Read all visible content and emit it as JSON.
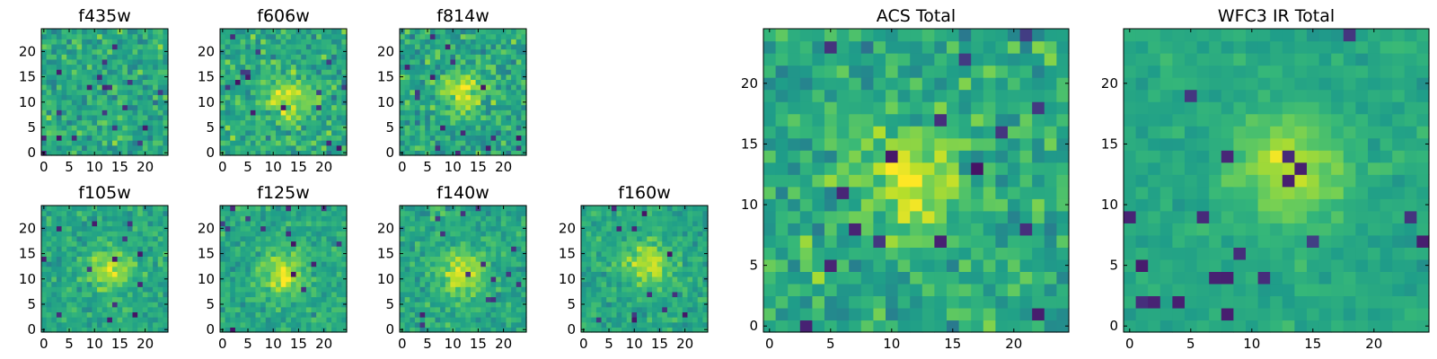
{
  "chart_data": [
    {
      "type": "heatmap",
      "title": "f435w",
      "x_ticks": [
        "0",
        "5",
        "10",
        "15",
        "20"
      ],
      "y_ticks": [
        "0",
        "5",
        "10",
        "15",
        "20"
      ],
      "xlim": [
        -0.5,
        24.5
      ],
      "ylim": [
        -0.5,
        24.5
      ],
      "grid_size": 25,
      "source_center": null,
      "noise_level": "high",
      "colormap": "viridis"
    },
    {
      "type": "heatmap",
      "title": "f606w",
      "x_ticks": [
        "0",
        "5",
        "10",
        "15",
        "20"
      ],
      "y_ticks": [
        "0",
        "5",
        "10",
        "15",
        "20"
      ],
      "xlim": [
        -0.5,
        24.5
      ],
      "ylim": [
        -0.5,
        24.5
      ],
      "grid_size": 25,
      "source_center": [
        13,
        11
      ],
      "noise_level": "high",
      "colormap": "viridis"
    },
    {
      "type": "heatmap",
      "title": "f814w",
      "x_ticks": [
        "0",
        "5",
        "10",
        "15",
        "20"
      ],
      "y_ticks": [
        "0",
        "5",
        "10",
        "15",
        "20"
      ],
      "xlim": [
        -0.5,
        24.5
      ],
      "ylim": [
        -0.5,
        24.5
      ],
      "grid_size": 25,
      "source_center": [
        12,
        12
      ],
      "noise_level": "high",
      "colormap": "viridis"
    },
    {
      "type": "heatmap",
      "title": "f105w",
      "x_ticks": [
        "0",
        "5",
        "10",
        "15",
        "20"
      ],
      "y_ticks": [
        "0",
        "5",
        "10",
        "15",
        "20"
      ],
      "xlim": [
        -0.5,
        24.5
      ],
      "ylim": [
        -0.5,
        24.5
      ],
      "grid_size": 25,
      "source_center": [
        13,
        12
      ],
      "noise_level": "medium",
      "colormap": "viridis"
    },
    {
      "type": "heatmap",
      "title": "f125w",
      "x_ticks": [
        "0",
        "5",
        "10",
        "15",
        "20"
      ],
      "y_ticks": [
        "0",
        "5",
        "10",
        "15",
        "20"
      ],
      "xlim": [
        -0.5,
        24.5
      ],
      "ylim": [
        -0.5,
        24.5
      ],
      "grid_size": 25,
      "source_center": [
        12,
        11
      ],
      "noise_level": "medium",
      "colormap": "viridis"
    },
    {
      "type": "heatmap",
      "title": "f140w",
      "x_ticks": [
        "0",
        "5",
        "10",
        "15",
        "20"
      ],
      "y_ticks": [
        "0",
        "5",
        "10",
        "15",
        "20"
      ],
      "xlim": [
        -0.5,
        24.5
      ],
      "ylim": [
        -0.5,
        24.5
      ],
      "grid_size": 25,
      "source_center": [
        12,
        11
      ],
      "noise_level": "medium",
      "colormap": "viridis"
    },
    {
      "type": "heatmap",
      "title": "f160w",
      "x_ticks": [
        "0",
        "5",
        "10",
        "15",
        "20"
      ],
      "y_ticks": [
        "0",
        "5",
        "10",
        "15",
        "20"
      ],
      "xlim": [
        -0.5,
        24.5
      ],
      "ylim": [
        -0.5,
        24.5
      ],
      "grid_size": 25,
      "source_center": [
        13,
        13
      ],
      "noise_level": "medium",
      "colormap": "viridis"
    },
    {
      "type": "heatmap",
      "title": "ACS Total",
      "x_ticks": [
        "0",
        "5",
        "10",
        "15",
        "20"
      ],
      "y_ticks": [
        "0",
        "5",
        "10",
        "15",
        "20"
      ],
      "xlim": [
        -0.5,
        24.5
      ],
      "ylim": [
        -0.5,
        24.5
      ],
      "grid_size": 25,
      "source_center": [
        12,
        12
      ],
      "noise_level": "high",
      "colormap": "viridis"
    },
    {
      "type": "heatmap",
      "title": "WFC3 IR Total",
      "x_ticks": [
        "0",
        "5",
        "10",
        "15",
        "20"
      ],
      "y_ticks": [
        "0",
        "5",
        "10",
        "15",
        "20"
      ],
      "xlim": [
        -0.5,
        24.5
      ],
      "ylim": [
        -0.5,
        24.5
      ],
      "grid_size": 25,
      "source_center": [
        13,
        13
      ],
      "noise_level": "low",
      "colormap": "viridis"
    }
  ]
}
